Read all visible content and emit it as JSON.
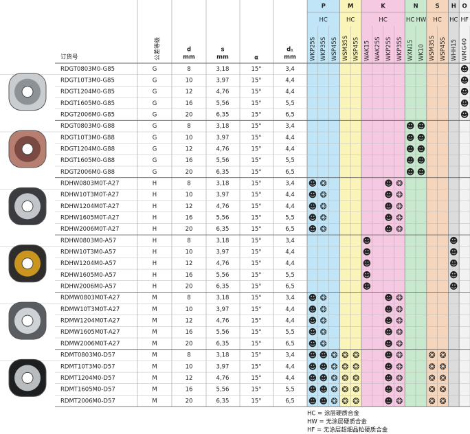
{
  "header": {
    "code": "订货号",
    "tol": "公差等级",
    "d": "d",
    "s": "s",
    "alpha": "α",
    "d1": "d₁",
    "unit": "mm"
  },
  "groups": [
    {
      "name": "P",
      "sub": [
        "HC"
      ],
      "grades": [
        "WKP25S",
        "WKP35S",
        "WSP45S"
      ],
      "color": "#bfe5f6"
    },
    {
      "name": "M",
      "sub": [
        "HC"
      ],
      "grades": [
        "WSM35S",
        "WSP45S"
      ],
      "color": "#fbf4b8"
    },
    {
      "name": "K",
      "sub": [
        "HC"
      ],
      "grades": [
        "WAK15",
        "WAK25S",
        "WKP25S",
        "WKP35S"
      ],
      "color": "#f6c9e2"
    },
    {
      "name": "N",
      "sub": [
        "HC",
        "HW"
      ],
      "grades": [
        "WXN15",
        "WK10"
      ],
      "color": "#c8e9cd"
    },
    {
      "name": "S",
      "sub": [
        "HC"
      ],
      "grades": [
        "WSM35S",
        "WSP45S"
      ],
      "color": "#f5d5bb"
    },
    {
      "name": "H",
      "sub": [
        "HC"
      ],
      "grades": [
        "WHH15"
      ],
      "color": "#dcdcdc"
    },
    {
      "name": "O",
      "sub": [
        "HF"
      ],
      "grades": [
        "WMG40"
      ],
      "color": "#f2f2f2"
    }
  ],
  "rows": [
    [
      "RDGT0803M0-G85",
      "G",
      "8",
      "3,18",
      "15°",
      "3,4",
      null,
      null,
      null,
      null,
      null,
      null,
      null,
      null,
      null,
      null,
      null,
      null,
      null,
      null,
      "☻"
    ],
    [
      "RDGT10T3M0-G85",
      "G",
      "10",
      "3,97",
      "15°",
      "4,4",
      null,
      null,
      null,
      null,
      null,
      null,
      null,
      null,
      null,
      null,
      null,
      null,
      null,
      null,
      "☻"
    ],
    [
      "RDGT1204M0-G85",
      "G",
      "12",
      "4,76",
      "15°",
      "4,4",
      null,
      null,
      null,
      null,
      null,
      null,
      null,
      null,
      null,
      null,
      null,
      null,
      null,
      null,
      "☻"
    ],
    [
      "RDGT1605M0-G85",
      "G",
      "16",
      "5,56",
      "15°",
      "5,5",
      null,
      null,
      null,
      null,
      null,
      null,
      null,
      null,
      null,
      null,
      null,
      null,
      null,
      null,
      "☻"
    ],
    [
      "RDGT2006M0-G85",
      "G",
      "20",
      "6,35",
      "15°",
      "6,5",
      null,
      null,
      null,
      null,
      null,
      null,
      null,
      null,
      null,
      null,
      null,
      null,
      null,
      null,
      "☻"
    ],
    [
      "RDGT0803M0-G88",
      "G",
      "8",
      "3,18",
      "15°",
      "3,4",
      null,
      null,
      null,
      null,
      null,
      null,
      null,
      null,
      null,
      "☻",
      "☻",
      null,
      null,
      null,
      null
    ],
    [
      "RDGT10T3M0-G88",
      "G",
      "10",
      "3,97",
      "15°",
      "4,4",
      null,
      null,
      null,
      null,
      null,
      null,
      null,
      null,
      null,
      "☻",
      "☻",
      null,
      null,
      null,
      null
    ],
    [
      "RDGT1204M0-G88",
      "G",
      "12",
      "4,76",
      "15°",
      "4,4",
      null,
      null,
      null,
      null,
      null,
      null,
      null,
      null,
      null,
      "☻",
      "☻",
      null,
      null,
      null,
      null
    ],
    [
      "RDGT1605M0-G88",
      "G",
      "16",
      "5,56",
      "15°",
      "5,5",
      null,
      null,
      null,
      null,
      null,
      null,
      null,
      null,
      null,
      "☻",
      "☻",
      null,
      null,
      null,
      null
    ],
    [
      "RDGT2006M0-G88",
      "G",
      "20",
      "6,35",
      "15°",
      "6,5",
      null,
      null,
      null,
      null,
      null,
      null,
      null,
      null,
      null,
      "☻",
      "☻",
      null,
      null,
      null,
      null
    ],
    [
      "RDHW0803M0T-A27",
      "H",
      "8",
      "3,18",
      "15°",
      "3,4",
      "☻",
      "❂",
      null,
      null,
      null,
      null,
      null,
      "☻",
      "❂",
      null,
      null,
      null,
      null,
      null,
      null
    ],
    [
      "RDHW10T3M0T-A27",
      "H",
      "10",
      "3,97",
      "15°",
      "4,4",
      "☻",
      "❂",
      null,
      null,
      null,
      null,
      null,
      "☻",
      "❂",
      null,
      null,
      null,
      null,
      null,
      null
    ],
    [
      "RDHW1204M0T-A27",
      "H",
      "12",
      "4,76",
      "15°",
      "4,4",
      "☻",
      "❂",
      null,
      null,
      null,
      null,
      null,
      "☻",
      "❂",
      null,
      null,
      null,
      null,
      null,
      null
    ],
    [
      "RDHW1605M0T-A27",
      "H",
      "16",
      "5,56",
      "15°",
      "5,5",
      "☻",
      "❂",
      null,
      null,
      null,
      null,
      null,
      "☻",
      "❂",
      null,
      null,
      null,
      null,
      null,
      null
    ],
    [
      "RDHW2006M0T-A27",
      "H",
      "20",
      "6,35",
      "15°",
      "6,5",
      "☻",
      "❂",
      null,
      null,
      null,
      null,
      null,
      "☻",
      "❂",
      null,
      null,
      null,
      null,
      null,
      null
    ],
    [
      "RDHW0803M0-A57",
      "H",
      "8",
      "3,18",
      "15°",
      "3,4",
      null,
      null,
      null,
      null,
      null,
      "☻",
      null,
      null,
      null,
      null,
      null,
      null,
      null,
      "☻",
      null
    ],
    [
      "RDHW10T3M0-A57",
      "H",
      "10",
      "3,97",
      "15°",
      "4,4",
      null,
      null,
      null,
      null,
      null,
      "☻",
      null,
      null,
      null,
      null,
      null,
      null,
      null,
      "☻",
      null
    ],
    [
      "RDHW1204M0-A57",
      "H",
      "12",
      "4,76",
      "15°",
      "4,4",
      null,
      null,
      null,
      null,
      null,
      "☻",
      null,
      null,
      null,
      null,
      null,
      null,
      null,
      "☻",
      null
    ],
    [
      "RDHW1605M0-A57",
      "H",
      "16",
      "5,56",
      "15°",
      "5,5",
      null,
      null,
      null,
      null,
      null,
      "☻",
      null,
      null,
      null,
      null,
      null,
      null,
      null,
      "☻",
      null
    ],
    [
      "RDHW2006M0-A57",
      "H",
      "20",
      "6,35",
      "15°",
      "6,5",
      null,
      null,
      null,
      null,
      null,
      "☻",
      null,
      null,
      null,
      null,
      null,
      null,
      null,
      "☻",
      null
    ],
    [
      "RDMW0803M0T-A27",
      "M",
      "8",
      "3,18",
      "15°",
      "3,4",
      "☻",
      "❂",
      null,
      null,
      null,
      null,
      null,
      "☻",
      "❂",
      null,
      null,
      null,
      null,
      null,
      null
    ],
    [
      "RDMW10T3M0T-A27",
      "M",
      "10",
      "3,97",
      "15°",
      "4,4",
      "☻",
      "❂",
      null,
      null,
      null,
      null,
      null,
      "☻",
      "❂",
      null,
      null,
      null,
      null,
      null,
      null
    ],
    [
      "RDMW1204M0T-A27",
      "M",
      "12",
      "4,76",
      "15°",
      "4,4",
      "☻",
      "❂",
      null,
      null,
      null,
      null,
      null,
      "☻",
      "❂",
      null,
      null,
      null,
      null,
      null,
      null
    ],
    [
      "RDMW1605M0T-A27",
      "M",
      "16",
      "5,56",
      "15°",
      "5,5",
      "☻",
      "❂",
      null,
      null,
      null,
      null,
      null,
      "☻",
      "❂",
      null,
      null,
      null,
      null,
      null,
      null
    ],
    [
      "RDMW2006M0T-A27",
      "M",
      "20",
      "6,35",
      "15°",
      "6,5",
      "☻",
      "❂",
      null,
      null,
      null,
      null,
      null,
      "☻",
      "❂",
      null,
      null,
      null,
      null,
      null,
      null
    ],
    [
      "RDMT0803M0-D57",
      "M",
      "8",
      "3,18",
      "15°",
      "3,4",
      "☻",
      "☻",
      "❂",
      "❂",
      "❂",
      null,
      null,
      "☻",
      "❂",
      null,
      null,
      "❂",
      "❂",
      null,
      null
    ],
    [
      "RDMT10T3M0-D57",
      "M",
      "10",
      "3,97",
      "15°",
      "4,4",
      "☻",
      "☻",
      "❂",
      "❂",
      "❂",
      null,
      null,
      "☻",
      "❂",
      null,
      null,
      "❂",
      "❂",
      null,
      null
    ],
    [
      "RDMT1204M0-D57",
      "M",
      "12",
      "4,76",
      "15°",
      "4,4",
      "☻",
      "☻",
      "❂",
      "❂",
      "❂",
      null,
      null,
      "☻",
      "❂",
      null,
      null,
      "❂",
      "❂",
      null,
      null
    ],
    [
      "RDMT1605M0-D57",
      "M",
      "16",
      "5,56",
      "15°",
      "5,5",
      "☻",
      "☻",
      "❂",
      "❂",
      "❂",
      null,
      null,
      "☻",
      "❂",
      null,
      null,
      "❂",
      "❂",
      null,
      null
    ],
    [
      "RDMT2006M0-D57",
      "M",
      "20",
      "6,35",
      "15°",
      "6,5",
      "☻",
      "☻",
      "❂",
      "❂",
      "❂",
      null,
      null,
      "☻",
      "❂",
      null,
      null,
      "❂",
      "❂",
      null,
      null
    ]
  ],
  "notes": [
    "HC = 涂层硬质合金",
    "HW = 无涂层硬质合金",
    "HF = 无涂层超细晶粒硬质合金"
  ]
}
